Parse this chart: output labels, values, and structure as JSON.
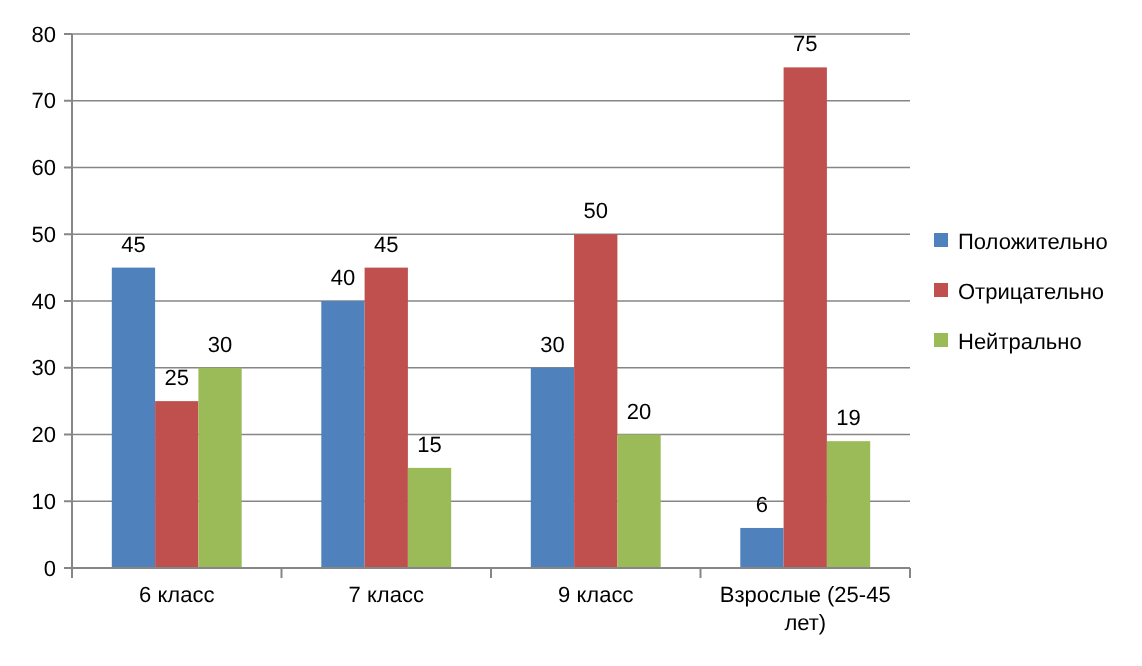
{
  "chart_data": {
    "type": "bar",
    "categories": [
      "6 класс",
      "7 класс",
      "9 класс",
      "Взрослые (25-45 лет)"
    ],
    "series": [
      {
        "name": "Положительно",
        "color": "#4f81bd",
        "values": [
          45,
          40,
          30,
          6
        ]
      },
      {
        "name": "Отрицательно",
        "color": "#c0504d",
        "values": [
          25,
          45,
          50,
          75
        ]
      },
      {
        "name": "Нейтрально",
        "color": "#9bbb59",
        "values": [
          30,
          15,
          20,
          19
        ]
      }
    ],
    "ylim": [
      0,
      80
    ],
    "yticks": [
      0,
      10,
      20,
      30,
      40,
      50,
      60,
      70,
      80
    ],
    "grid": "y",
    "legend": "right",
    "data_labels": true
  }
}
